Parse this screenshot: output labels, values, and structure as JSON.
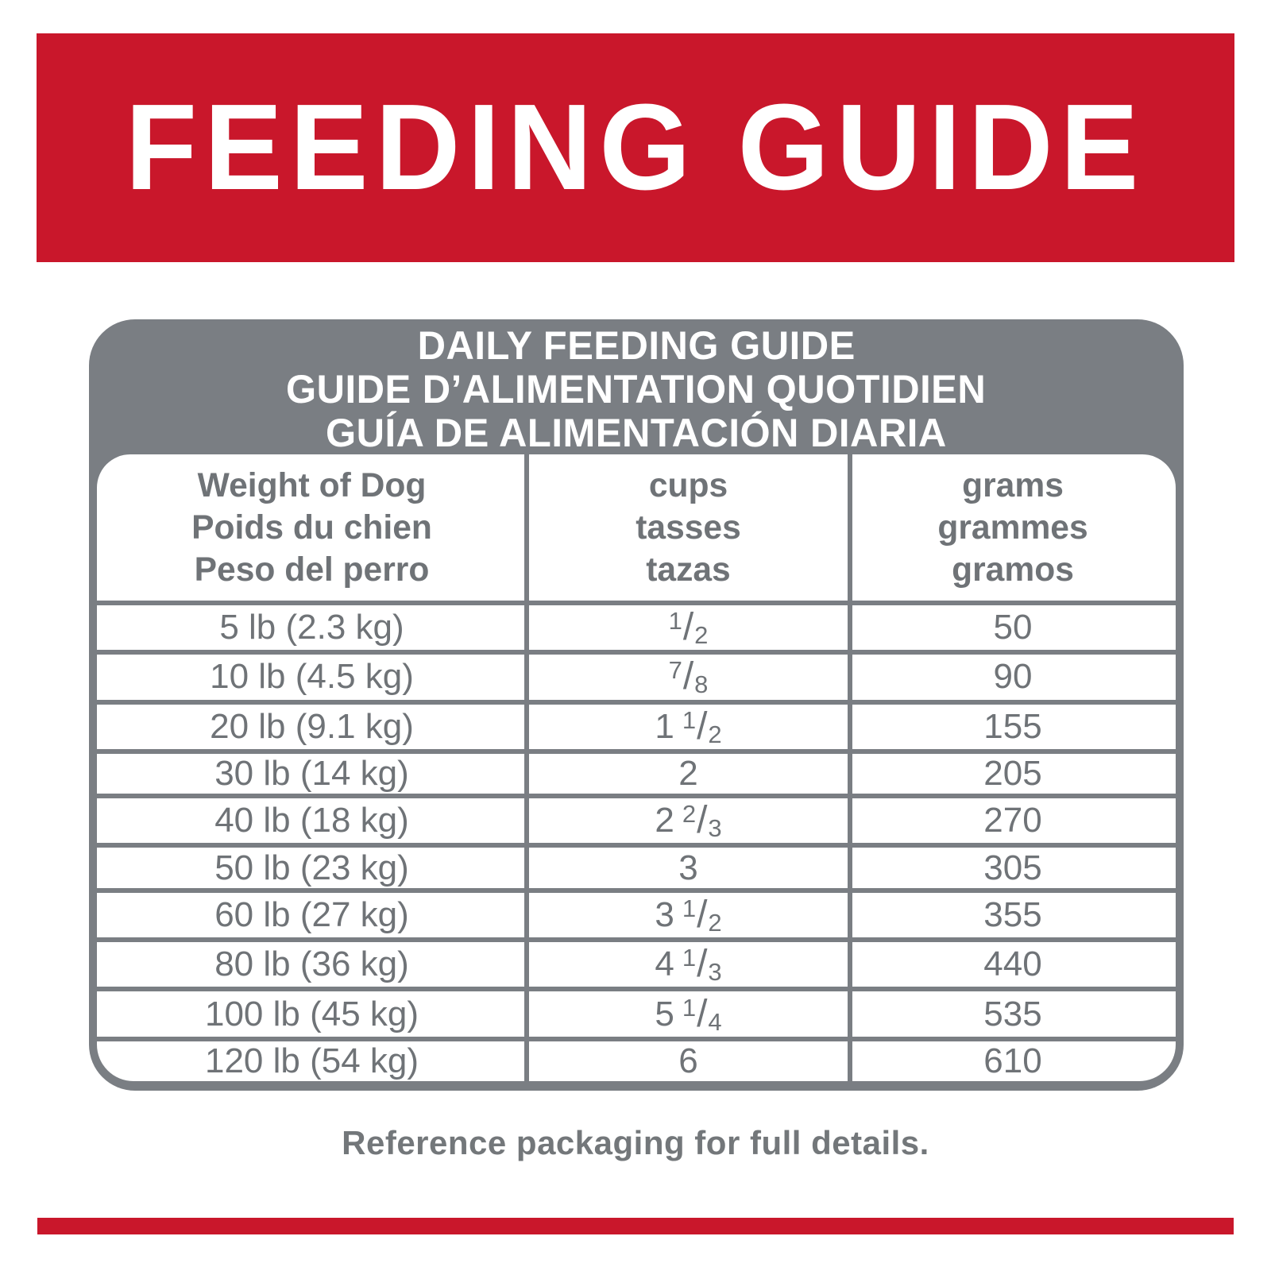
{
  "colors": {
    "banner_red": "#C9172B",
    "frame_gray": "#7A7E83",
    "text_gray": "#6F7377",
    "background": "#FFFFFF"
  },
  "banner": {
    "title": "FEEDING GUIDE"
  },
  "table": {
    "title_lines": [
      "DAILY FEEDING GUIDE",
      "GUIDE D’ALIMENTATION QUOTIDIEN",
      "GUÍA DE ALIMENTACIÓN DIARIA"
    ],
    "columns": [
      {
        "lines": [
          "Weight of Dog",
          "Poids du chien",
          "Peso del perro"
        ]
      },
      {
        "lines": [
          "cups",
          "tasses",
          "tazas"
        ]
      },
      {
        "lines": [
          "grams",
          "grammes",
          "gramos"
        ]
      }
    ],
    "rows": [
      {
        "weight": "5 lb (2.3 kg)",
        "cups": {
          "whole": "",
          "num": "1",
          "den": "2"
        },
        "grams": "50"
      },
      {
        "weight": "10 lb (4.5 kg)",
        "cups": {
          "whole": "",
          "num": "7",
          "den": "8"
        },
        "grams": "90"
      },
      {
        "weight": "20 lb (9.1 kg)",
        "cups": {
          "whole": "1",
          "num": "1",
          "den": "2"
        },
        "grams": "155"
      },
      {
        "weight": "30 lb (14 kg)",
        "cups": {
          "whole": "2",
          "num": "",
          "den": ""
        },
        "grams": "205"
      },
      {
        "weight": "40 lb (18 kg)",
        "cups": {
          "whole": "2",
          "num": "2",
          "den": "3"
        },
        "grams": "270"
      },
      {
        "weight": "50 lb (23 kg)",
        "cups": {
          "whole": "3",
          "num": "",
          "den": ""
        },
        "grams": "305"
      },
      {
        "weight": "60 lb (27 kg)",
        "cups": {
          "whole": "3",
          "num": "1",
          "den": "2"
        },
        "grams": "355"
      },
      {
        "weight": "80 lb (36 kg)",
        "cups": {
          "whole": "4",
          "num": "1",
          "den": "3"
        },
        "grams": "440"
      },
      {
        "weight": "100 lb (45 kg)",
        "cups": {
          "whole": "5",
          "num": "1",
          "den": "4"
        },
        "grams": "535"
      },
      {
        "weight": "120 lb (54 kg)",
        "cups": {
          "whole": "6",
          "num": "",
          "den": ""
        },
        "grams": "610"
      }
    ]
  },
  "footer": {
    "note": "Reference packaging for full details."
  }
}
